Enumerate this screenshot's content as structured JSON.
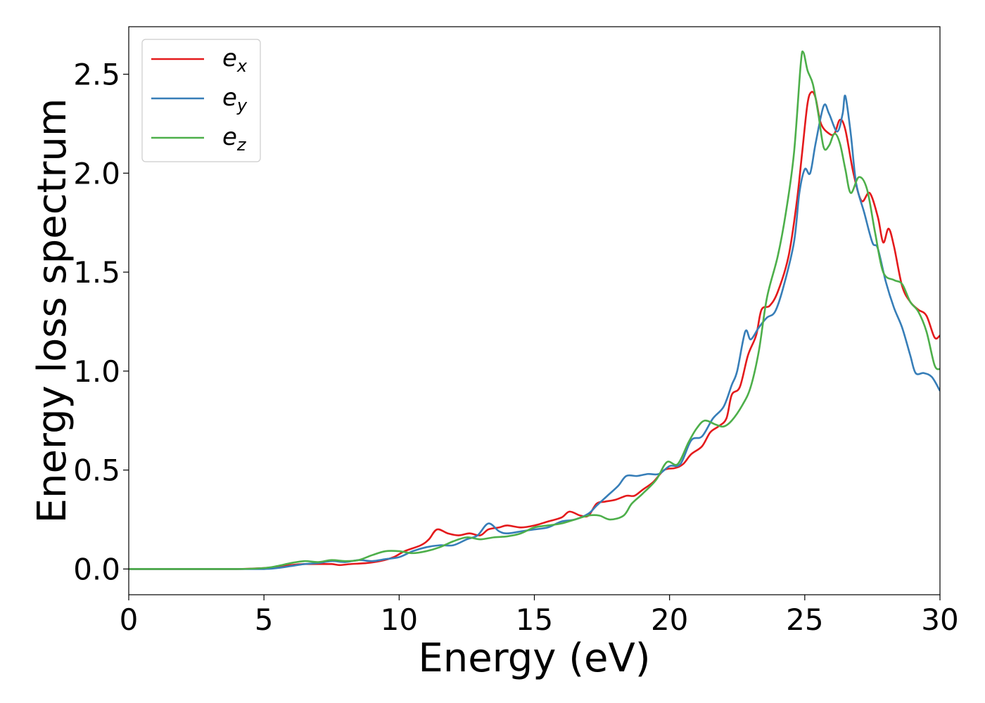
{
  "chart_data": {
    "type": "line",
    "xlabel": "Energy (eV)",
    "ylabel": "Energy loss spectrum",
    "xlim": [
      0,
      30
    ],
    "ylim": [
      -0.13,
      2.74
    ],
    "xticks": [
      0,
      5,
      10,
      15,
      20,
      25,
      30
    ],
    "xtick_labels": [
      "0",
      "5",
      "10",
      "15",
      "20",
      "25",
      "30"
    ],
    "yticks": [
      0.0,
      0.5,
      1.0,
      1.5,
      2.0,
      2.5
    ],
    "ytick_labels": [
      "0.0",
      "0.5",
      "1.0",
      "1.5",
      "2.0",
      "2.5"
    ],
    "grid": false,
    "legend_position": "top-left",
    "series": [
      {
        "name": "e_x",
        "label_main": "e",
        "label_sub": "x",
        "color": "#e41a1c",
        "points": [
          [
            0,
            0
          ],
          [
            2,
            0
          ],
          [
            4,
            0
          ],
          [
            5,
            0.005
          ],
          [
            5.5,
            0.01
          ],
          [
            6,
            0.02
          ],
          [
            6.5,
            0.025
          ],
          [
            7,
            0.025
          ],
          [
            7.5,
            0.025
          ],
          [
            7.8,
            0.02
          ],
          [
            8.2,
            0.025
          ],
          [
            8.8,
            0.03
          ],
          [
            9.3,
            0.04
          ],
          [
            9.8,
            0.06
          ],
          [
            10.2,
            0.09
          ],
          [
            10.8,
            0.12
          ],
          [
            11.1,
            0.15
          ],
          [
            11.4,
            0.2
          ],
          [
            11.8,
            0.18
          ],
          [
            12.2,
            0.17
          ],
          [
            12.6,
            0.18
          ],
          [
            13,
            0.17
          ],
          [
            13.3,
            0.2
          ],
          [
            13.7,
            0.21
          ],
          [
            14,
            0.22
          ],
          [
            14.5,
            0.21
          ],
          [
            15,
            0.22
          ],
          [
            15.5,
            0.24
          ],
          [
            16,
            0.26
          ],
          [
            16.3,
            0.29
          ],
          [
            16.7,
            0.27
          ],
          [
            17,
            0.27
          ],
          [
            17.3,
            0.33
          ],
          [
            17.6,
            0.34
          ],
          [
            18,
            0.35
          ],
          [
            18.4,
            0.37
          ],
          [
            18.7,
            0.37
          ],
          [
            19,
            0.4
          ],
          [
            19.4,
            0.44
          ],
          [
            19.8,
            0.5
          ],
          [
            20.2,
            0.51
          ],
          [
            20.5,
            0.53
          ],
          [
            20.8,
            0.58
          ],
          [
            21.2,
            0.62
          ],
          [
            21.5,
            0.69
          ],
          [
            21.8,
            0.72
          ],
          [
            22.1,
            0.76
          ],
          [
            22.3,
            0.88
          ],
          [
            22.6,
            0.92
          ],
          [
            22.9,
            1.08
          ],
          [
            23.2,
            1.18
          ],
          [
            23.4,
            1.31
          ],
          [
            23.7,
            1.33
          ],
          [
            24,
            1.4
          ],
          [
            24.4,
            1.58
          ],
          [
            24.7,
            1.85
          ],
          [
            24.9,
            2.1
          ],
          [
            25.1,
            2.35
          ],
          [
            25.25,
            2.41
          ],
          [
            25.4,
            2.38
          ],
          [
            25.6,
            2.25
          ],
          [
            25.9,
            2.2
          ],
          [
            26.1,
            2.2
          ],
          [
            26.3,
            2.27
          ],
          [
            26.5,
            2.22
          ],
          [
            26.8,
            2.0
          ],
          [
            27.1,
            1.86
          ],
          [
            27.4,
            1.9
          ],
          [
            27.7,
            1.78
          ],
          [
            27.9,
            1.65
          ],
          [
            28.1,
            1.72
          ],
          [
            28.3,
            1.63
          ],
          [
            28.6,
            1.43
          ],
          [
            28.9,
            1.35
          ],
          [
            29.2,
            1.31
          ],
          [
            29.5,
            1.28
          ],
          [
            29.8,
            1.17
          ],
          [
            30,
            1.18
          ]
        ]
      },
      {
        "name": "e_y",
        "label_main": "e",
        "label_sub": "y",
        "color": "#377eb8",
        "points": [
          [
            0,
            0
          ],
          [
            2,
            0
          ],
          [
            4,
            0
          ],
          [
            5,
            0.0
          ],
          [
            5.5,
            0.005
          ],
          [
            6,
            0.015
          ],
          [
            6.5,
            0.025
          ],
          [
            7,
            0.03
          ],
          [
            7.5,
            0.04
          ],
          [
            8,
            0.035
          ],
          [
            8.5,
            0.045
          ],
          [
            9,
            0.04
          ],
          [
            9.5,
            0.05
          ],
          [
            10,
            0.06
          ],
          [
            10.5,
            0.09
          ],
          [
            11,
            0.11
          ],
          [
            11.5,
            0.12
          ],
          [
            12,
            0.12
          ],
          [
            12.5,
            0.15
          ],
          [
            12.9,
            0.17
          ],
          [
            13.3,
            0.23
          ],
          [
            13.7,
            0.19
          ],
          [
            14,
            0.18
          ],
          [
            14.5,
            0.19
          ],
          [
            15,
            0.2
          ],
          [
            15.5,
            0.21
          ],
          [
            16,
            0.24
          ],
          [
            16.5,
            0.25
          ],
          [
            17,
            0.28
          ],
          [
            17.3,
            0.32
          ],
          [
            17.7,
            0.37
          ],
          [
            18.1,
            0.42
          ],
          [
            18.4,
            0.47
          ],
          [
            18.8,
            0.47
          ],
          [
            19.2,
            0.48
          ],
          [
            19.6,
            0.48
          ],
          [
            20,
            0.52
          ],
          [
            20.4,
            0.53
          ],
          [
            20.8,
            0.65
          ],
          [
            21.2,
            0.67
          ],
          [
            21.6,
            0.76
          ],
          [
            22,
            0.82
          ],
          [
            22.3,
            0.93
          ],
          [
            22.5,
            1.0
          ],
          [
            22.8,
            1.2
          ],
          [
            23,
            1.16
          ],
          [
            23.3,
            1.22
          ],
          [
            23.6,
            1.27
          ],
          [
            23.9,
            1.3
          ],
          [
            24.2,
            1.42
          ],
          [
            24.6,
            1.65
          ],
          [
            24.8,
            1.9
          ],
          [
            25,
            2.02
          ],
          [
            25.2,
            2.0
          ],
          [
            25.4,
            2.15
          ],
          [
            25.7,
            2.34
          ],
          [
            25.9,
            2.3
          ],
          [
            26.2,
            2.21
          ],
          [
            26.4,
            2.3
          ],
          [
            26.5,
            2.39
          ],
          [
            26.7,
            2.2
          ],
          [
            26.9,
            1.95
          ],
          [
            27.2,
            1.8
          ],
          [
            27.5,
            1.65
          ],
          [
            27.7,
            1.62
          ],
          [
            28,
            1.45
          ],
          [
            28.3,
            1.32
          ],
          [
            28.6,
            1.22
          ],
          [
            28.9,
            1.08
          ],
          [
            29.1,
            0.99
          ],
          [
            29.4,
            0.99
          ],
          [
            29.7,
            0.97
          ],
          [
            30,
            0.9
          ]
        ]
      },
      {
        "name": "e_z",
        "label_main": "e",
        "label_sub": "z",
        "color": "#4daf4a",
        "points": [
          [
            0,
            0
          ],
          [
            2,
            0
          ],
          [
            4,
            0
          ],
          [
            5,
            0.005
          ],
          [
            5.5,
            0.015
          ],
          [
            6,
            0.03
          ],
          [
            6.5,
            0.04
          ],
          [
            7,
            0.035
          ],
          [
            7.5,
            0.045
          ],
          [
            8,
            0.04
          ],
          [
            8.5,
            0.045
          ],
          [
            9,
            0.07
          ],
          [
            9.5,
            0.09
          ],
          [
            10,
            0.09
          ],
          [
            10.5,
            0.08
          ],
          [
            11,
            0.09
          ],
          [
            11.5,
            0.11
          ],
          [
            12,
            0.14
          ],
          [
            12.5,
            0.16
          ],
          [
            13,
            0.15
          ],
          [
            13.5,
            0.16
          ],
          [
            14,
            0.165
          ],
          [
            14.5,
            0.18
          ],
          [
            15,
            0.21
          ],
          [
            15.5,
            0.22
          ],
          [
            16,
            0.23
          ],
          [
            16.5,
            0.25
          ],
          [
            17,
            0.27
          ],
          [
            17.4,
            0.27
          ],
          [
            17.8,
            0.25
          ],
          [
            18.3,
            0.27
          ],
          [
            18.6,
            0.33
          ],
          [
            19,
            0.38
          ],
          [
            19.5,
            0.45
          ],
          [
            19.9,
            0.54
          ],
          [
            20.3,
            0.53
          ],
          [
            20.7,
            0.64
          ],
          [
            21,
            0.71
          ],
          [
            21.3,
            0.75
          ],
          [
            21.7,
            0.73
          ],
          [
            22,
            0.72
          ],
          [
            22.3,
            0.75
          ],
          [
            22.7,
            0.83
          ],
          [
            23,
            0.92
          ],
          [
            23.3,
            1.1
          ],
          [
            23.6,
            1.37
          ],
          [
            24,
            1.58
          ],
          [
            24.3,
            1.8
          ],
          [
            24.6,
            2.1
          ],
          [
            24.85,
            2.55
          ],
          [
            24.95,
            2.61
          ],
          [
            25.1,
            2.52
          ],
          [
            25.3,
            2.45
          ],
          [
            25.5,
            2.3
          ],
          [
            25.7,
            2.13
          ],
          [
            25.9,
            2.14
          ],
          [
            26.1,
            2.2
          ],
          [
            26.3,
            2.15
          ],
          [
            26.5,
            2.02
          ],
          [
            26.7,
            1.9
          ],
          [
            27,
            1.98
          ],
          [
            27.3,
            1.92
          ],
          [
            27.6,
            1.7
          ],
          [
            27.9,
            1.5
          ],
          [
            28.3,
            1.46
          ],
          [
            28.6,
            1.44
          ],
          [
            28.9,
            1.35
          ],
          [
            29.2,
            1.3
          ],
          [
            29.5,
            1.2
          ],
          [
            29.8,
            1.03
          ],
          [
            30,
            1.01
          ]
        ]
      }
    ]
  }
}
